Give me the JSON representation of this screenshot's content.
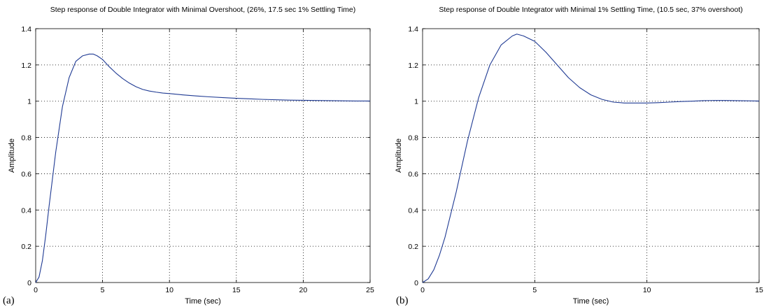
{
  "panels": [
    {
      "letter": "(a)"
    },
    {
      "letter": "(b)"
    }
  ],
  "chart_data": [
    {
      "type": "line",
      "title": "Step response of Double Integrator with Minimal Overshoot, (26%, 17.5 sec 1% Settling Time)",
      "xlabel": "Time (sec)",
      "ylabel": "Amplitude",
      "xlim": [
        0,
        25
      ],
      "ylim": [
        0,
        1.4
      ],
      "xticks": [
        0,
        5,
        10,
        15,
        20,
        25
      ],
      "yticks": [
        0,
        0.2,
        0.4,
        0.6,
        0.8,
        1,
        1.2,
        1.4
      ],
      "grid": true,
      "line_color": "#1f3a93",
      "series": [
        {
          "x": [
            0,
            0.25,
            0.5,
            0.75,
            1,
            1.5,
            2,
            2.5,
            3,
            3.5,
            4,
            4.3,
            4.6,
            5,
            5.5,
            6,
            6.5,
            7,
            7.5,
            8,
            8.5,
            9,
            9.5,
            10,
            11,
            12,
            13,
            14,
            15,
            16,
            17,
            18,
            19,
            20,
            21,
            22,
            23,
            24,
            25
          ],
          "y": [
            0,
            0.03,
            0.12,
            0.26,
            0.42,
            0.72,
            0.97,
            1.13,
            1.22,
            1.25,
            1.26,
            1.26,
            1.25,
            1.23,
            1.19,
            1.155,
            1.125,
            1.1,
            1.08,
            1.065,
            1.056,
            1.05,
            1.045,
            1.042,
            1.035,
            1.029,
            1.024,
            1.02,
            1.016,
            1.013,
            1.01,
            1.008,
            1.006,
            1.005,
            1.004,
            1.003,
            1.002,
            1.001,
            1.001
          ]
        }
      ]
    },
    {
      "type": "line",
      "title": "Step response of Double Integrator with Minimal 1% Settling Time, (10.5 sec, 37% overshoot)",
      "xlabel": "Time (sec)",
      "ylabel": "Amplitude",
      "xlim": [
        0,
        15
      ],
      "ylim": [
        0,
        1.4
      ],
      "xticks": [
        0,
        5,
        10,
        15
      ],
      "yticks": [
        0,
        0.2,
        0.4,
        0.6,
        0.8,
        1,
        1.2,
        1.4
      ],
      "grid": true,
      "line_color": "#1f3a93",
      "series": [
        {
          "x": [
            0,
            0.25,
            0.5,
            0.75,
            1,
            1.5,
            2,
            2.5,
            3,
            3.5,
            4,
            4.2,
            4.5,
            5,
            5.5,
            6,
            6.5,
            7,
            7.5,
            8,
            8.5,
            9,
            9.5,
            10,
            10.5,
            11,
            11.5,
            12,
            12.5,
            13,
            13.5,
            14,
            14.5,
            15
          ],
          "y": [
            0,
            0.02,
            0.07,
            0.15,
            0.25,
            0.5,
            0.78,
            1.02,
            1.2,
            1.31,
            1.36,
            1.37,
            1.36,
            1.33,
            1.27,
            1.2,
            1.13,
            1.075,
            1.035,
            1.01,
            0.995,
            0.99,
            0.99,
            0.99,
            0.992,
            0.995,
            0.998,
            1.0,
            1.003,
            1.004,
            1.004,
            1.003,
            1.002,
            1.001
          ]
        }
      ]
    }
  ]
}
